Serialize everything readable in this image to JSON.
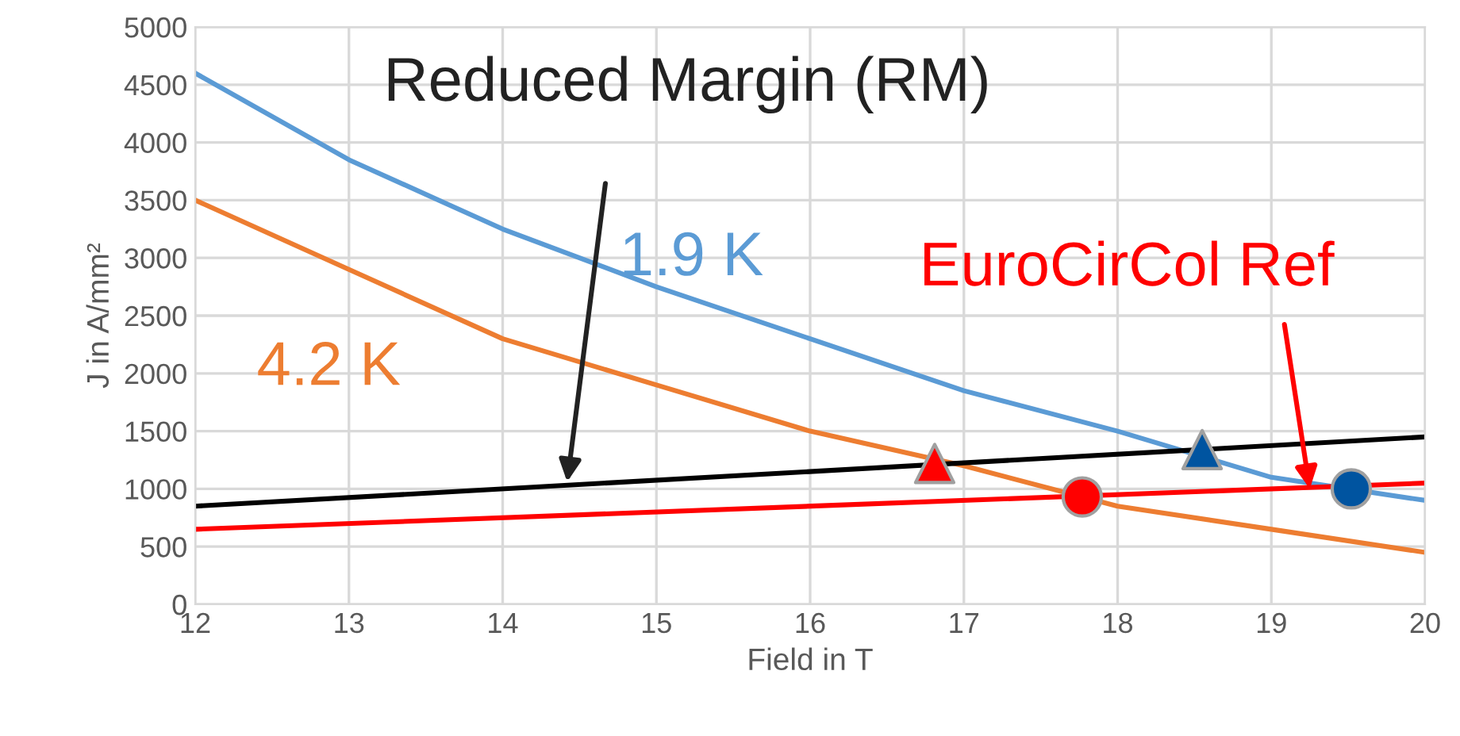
{
  "chart_data": {
    "type": "line",
    "xlabel": "Field in T",
    "ylabel": "J in A/mm²",
    "xlim": [
      12,
      20
    ],
    "xticks": [
      12,
      13,
      14,
      15,
      16,
      17,
      18,
      19,
      20
    ],
    "ylim": [
      0,
      5000
    ],
    "yticks": [
      0,
      500,
      1000,
      1500,
      2000,
      2500,
      3000,
      3500,
      4000,
      4500,
      5000
    ],
    "grid": true,
    "marker": "none",
    "series": [
      {
        "name": "1.9 K",
        "color": "#5b9bd5",
        "x": [
          12,
          13,
          14,
          15,
          16,
          17,
          18,
          19,
          20
        ],
        "values": [
          4600,
          3850,
          3250,
          2750,
          2300,
          1850,
          1500,
          1100,
          900
        ]
      },
      {
        "name": "4.2 K",
        "color": "#ed7d31",
        "x": [
          12,
          13,
          14,
          15,
          16,
          17,
          18,
          19,
          20
        ],
        "values": [
          3500,
          2900,
          2300,
          1900,
          1500,
          1200,
          850,
          650,
          450
        ]
      },
      {
        "color": "#000000",
        "x": [
          12,
          20
        ],
        "values": [
          850,
          1450
        ]
      },
      {
        "color": "#ff0000",
        "x": [
          12,
          20
        ],
        "values": [
          650,
          1050
        ]
      },
      {
        "type": "scatter",
        "marker": "triangle",
        "color": "#ff0000",
        "x": [
          16.81
        ],
        "values": [
          1220
        ]
      },
      {
        "type": "scatter",
        "marker": "circle",
        "color": "#ff0000",
        "x": [
          17.77
        ],
        "values": [
          930
        ]
      },
      {
        "type": "scatter",
        "marker": "triangle",
        "color": "#0054a0",
        "x": [
          18.55
        ],
        "values": [
          1340
        ]
      },
      {
        "type": "scatter",
        "marker": "circle",
        "color": "#0054a0",
        "x": [
          19.52
        ],
        "values": [
          1000
        ]
      }
    ],
    "annotations": [
      {
        "text": "Reduced Margin (RM)",
        "x": 14.42,
        "y": 1060
      },
      {
        "text": "EuroCirCol Ref",
        "x": 19.25,
        "y": 1000
      }
    ]
  }
}
